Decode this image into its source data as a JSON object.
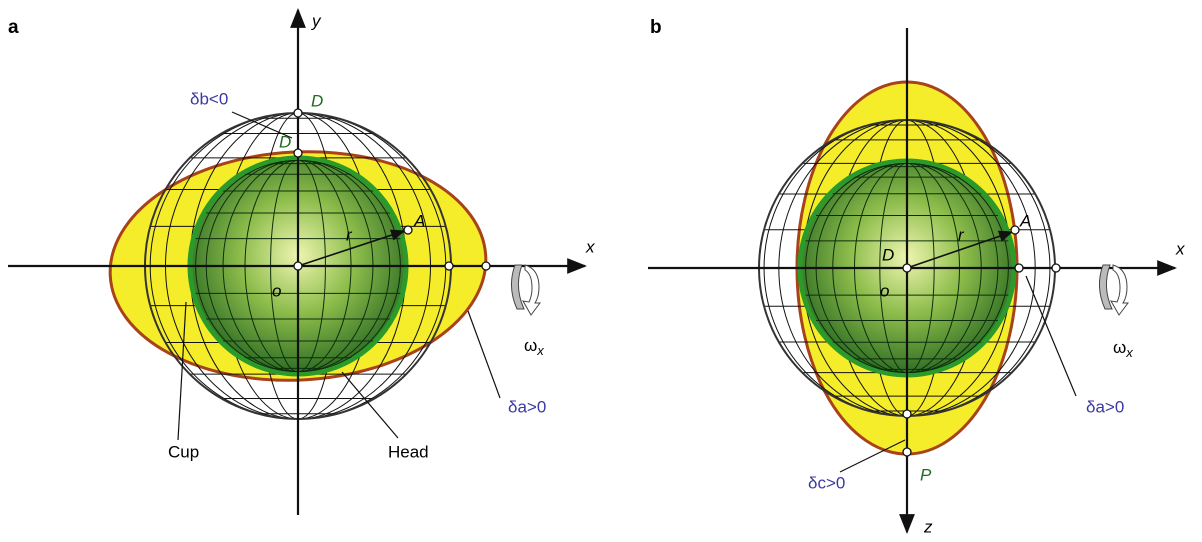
{
  "panel_a": {
    "label": "a",
    "y_axis": "y",
    "x_axis": "x",
    "delta_b": "δb<0",
    "point_d_outer": "D",
    "point_d_inner": "D",
    "point_a": "A",
    "radius": "r",
    "origin": "o",
    "omega": "ω",
    "omega_sub": "x",
    "delta_a": "δa>0",
    "cup": "Cup",
    "head": "Head"
  },
  "panel_b": {
    "label": "b",
    "x_axis": "x",
    "z_axis": "z",
    "point_d": "D",
    "point_a": "A",
    "radius": "r",
    "origin": "o",
    "omega": "ω",
    "omega_sub": "x",
    "delta_a": "δa>0",
    "delta_c": "δc>0",
    "point_p": "P"
  }
}
